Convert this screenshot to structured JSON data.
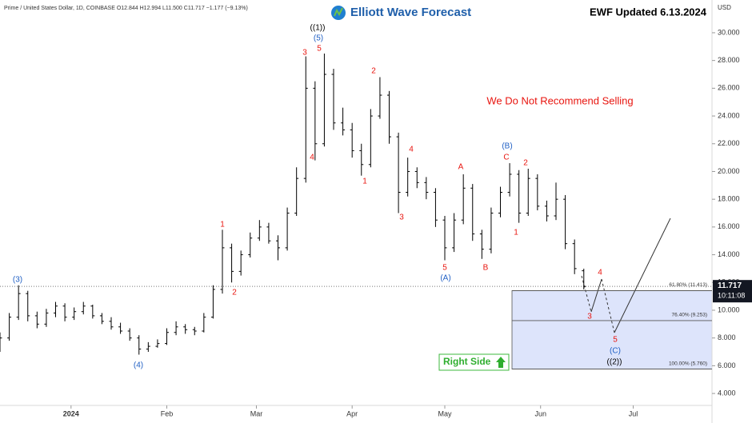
{
  "chart_data": {
    "type": "ohlc",
    "header": "Prime / United States Dollar, 1D, COINBASE  O12.844  H12.994  L11.500  C11.717  −1.177 (−9.13%)",
    "logo_text": "Elliott Wave Forecast",
    "updated": "EWF Updated 6.13.2024",
    "currency": "USD",
    "notice": "We Do Not Recommend Selling",
    "right_side": "Right Side",
    "last_price": {
      "value": 11.717,
      "label": "11.717"
    },
    "countdown": "10:11:08",
    "color": "#000000",
    "xlim": [
      -23,
      207.5
    ],
    "xticks": [
      {
        "value": 0,
        "label": "2024"
      },
      {
        "value": 31,
        "label": "Feb"
      },
      {
        "value": 60,
        "label": "Mar"
      },
      {
        "value": 91,
        "label": "Apr"
      },
      {
        "value": 121,
        "label": "May"
      },
      {
        "value": 152,
        "label": "Jun"
      },
      {
        "value": 182,
        "label": "Jul"
      }
    ],
    "ylim": [
      3.14,
      32.36
    ],
    "yticks": [
      {
        "value": 4,
        "label": "4.000"
      },
      {
        "value": 6,
        "label": "6.000"
      },
      {
        "value": 8,
        "label": "8.000"
      },
      {
        "value": 10,
        "label": "10.000"
      },
      {
        "value": 12,
        "label": "12.000"
      },
      {
        "value": 14,
        "label": "14.000"
      },
      {
        "value": 16,
        "label": "16.000"
      },
      {
        "value": 18,
        "label": "18.000"
      },
      {
        "value": 20,
        "label": "20.000"
      },
      {
        "value": 22,
        "label": "22.000"
      },
      {
        "value": 24,
        "label": "24.000"
      },
      {
        "value": 26,
        "label": "26.000"
      },
      {
        "value": 28,
        "label": "28.000"
      },
      {
        "value": 30,
        "label": "30.000"
      }
    ],
    "x": [
      -23,
      -20,
      -17,
      -14,
      -11,
      -8,
      -5,
      -2,
      1,
      4,
      7,
      10,
      13,
      16,
      19,
      22,
      25,
      28,
      31,
      34,
      37,
      40,
      43,
      46,
      49,
      52,
      55,
      58,
      61,
      64,
      67,
      70,
      73,
      76,
      79,
      82,
      85,
      88,
      91,
      94,
      97,
      100,
      103,
      106,
      109,
      112,
      115,
      118,
      121,
      124,
      127,
      130,
      133,
      136,
      139,
      142,
      145,
      148,
      151,
      154,
      157,
      160,
      163,
      166
    ],
    "ohlc": [
      [
        7.5,
        8.4,
        7.0,
        8.0
      ],
      [
        8.0,
        9.8,
        7.8,
        9.5
      ],
      [
        9.5,
        11.8,
        9.3,
        11.2
      ],
      [
        11.2,
        11.4,
        9.2,
        9.6
      ],
      [
        9.6,
        9.9,
        8.7,
        9.0
      ],
      [
        9.0,
        10.1,
        8.8,
        9.8
      ],
      [
        9.8,
        10.6,
        9.5,
        10.3
      ],
      [
        10.3,
        10.5,
        9.2,
        9.5
      ],
      [
        9.5,
        10.2,
        9.3,
        9.9
      ],
      [
        9.9,
        10.6,
        9.7,
        10.3
      ],
      [
        10.3,
        10.4,
        9.4,
        9.6
      ],
      [
        9.6,
        9.8,
        9.0,
        9.2
      ],
      [
        9.2,
        9.5,
        8.6,
        8.8
      ],
      [
        8.8,
        9.1,
        8.3,
        8.5
      ],
      [
        8.5,
        8.7,
        7.8,
        8.0
      ],
      [
        8.0,
        8.2,
        6.8,
        7.2
      ],
      [
        7.2,
        7.7,
        7.0,
        7.4
      ],
      [
        7.4,
        7.9,
        7.3,
        7.6
      ],
      [
        7.6,
        8.7,
        7.5,
        8.4
      ],
      [
        8.4,
        9.2,
        8.2,
        8.8
      ],
      [
        8.8,
        9.0,
        8.3,
        8.6
      ],
      [
        8.6,
        8.8,
        8.2,
        8.5
      ],
      [
        8.5,
        9.8,
        8.4,
        9.5
      ],
      [
        9.5,
        11.8,
        9.4,
        11.5
      ],
      [
        11.5,
        15.8,
        11.2,
        14.5
      ],
      [
        14.5,
        14.8,
        12.0,
        12.8
      ],
      [
        12.8,
        14.3,
        12.5,
        14.0
      ],
      [
        14.0,
        15.6,
        13.8,
        15.2
      ],
      [
        15.2,
        16.5,
        15.0,
        16.0
      ],
      [
        16.0,
        16.3,
        14.8,
        15.0
      ],
      [
        15.0,
        15.4,
        13.6,
        14.5
      ],
      [
        14.5,
        17.4,
        14.3,
        17.0
      ],
      [
        17.0,
        20.3,
        16.8,
        19.5
      ],
      [
        19.5,
        28.3,
        19.2,
        26.0
      ],
      [
        26.0,
        26.5,
        20.8,
        22.0
      ],
      [
        22.0,
        28.5,
        21.8,
        27.0
      ],
      [
        27.0,
        27.4,
        23.0,
        23.5
      ],
      [
        23.5,
        24.6,
        22.6,
        23.0
      ],
      [
        23.0,
        23.5,
        21.0,
        21.5
      ],
      [
        21.5,
        22.0,
        19.7,
        20.5
      ],
      [
        20.5,
        24.5,
        20.3,
        24.0
      ],
      [
        24.0,
        26.8,
        23.8,
        25.5
      ],
      [
        25.5,
        25.8,
        22.0,
        22.5
      ],
      [
        22.5,
        22.8,
        17.0,
        18.5
      ],
      [
        18.5,
        21.0,
        18.2,
        20.0
      ],
      [
        20.0,
        20.3,
        18.8,
        19.2
      ],
      [
        19.2,
        19.6,
        18.0,
        18.5
      ],
      [
        18.5,
        18.8,
        16.0,
        16.5
      ],
      [
        16.5,
        16.8,
        13.6,
        14.5
      ],
      [
        14.5,
        17.0,
        14.2,
        16.5
      ],
      [
        16.5,
        19.8,
        16.2,
        18.8
      ],
      [
        18.8,
        19.1,
        15.0,
        15.5
      ],
      [
        15.5,
        15.8,
        13.7,
        14.4
      ],
      [
        14.4,
        17.4,
        14.1,
        17.0
      ],
      [
        17.0,
        18.9,
        16.7,
        18.5
      ],
      [
        18.5,
        20.6,
        18.2,
        19.8
      ],
      [
        19.8,
        20.1,
        16.3,
        17.0
      ],
      [
        17.0,
        20.2,
        16.8,
        19.5
      ],
      [
        19.5,
        19.8,
        17.2,
        17.5
      ],
      [
        17.5,
        17.9,
        16.4,
        16.8
      ],
      [
        16.8,
        19.2,
        16.5,
        18.0
      ],
      [
        18.0,
        18.3,
        14.4,
        14.8
      ],
      [
        14.8,
        15.1,
        12.6,
        13.0
      ],
      [
        12.844,
        12.994,
        11.5,
        11.717
      ]
    ],
    "fib_levels": [
      {
        "value": 11.413,
        "label": "61.80% (11.413)"
      },
      {
        "value": 9.253,
        "label": "76.40% (9.253)"
      },
      {
        "value": 5.76,
        "label": "100.00% (5.760)"
      }
    ],
    "wave_labels": [
      "(3)",
      "(4)",
      "1",
      "2",
      "3",
      "4",
      "5",
      "(5)",
      "((1))",
      "1",
      "2",
      "3",
      "4",
      "5",
      "(A)",
      "A",
      "B",
      "(B)",
      "C",
      "1",
      "2",
      "3",
      "4",
      "5",
      "(C)",
      "((2))"
    ]
  }
}
